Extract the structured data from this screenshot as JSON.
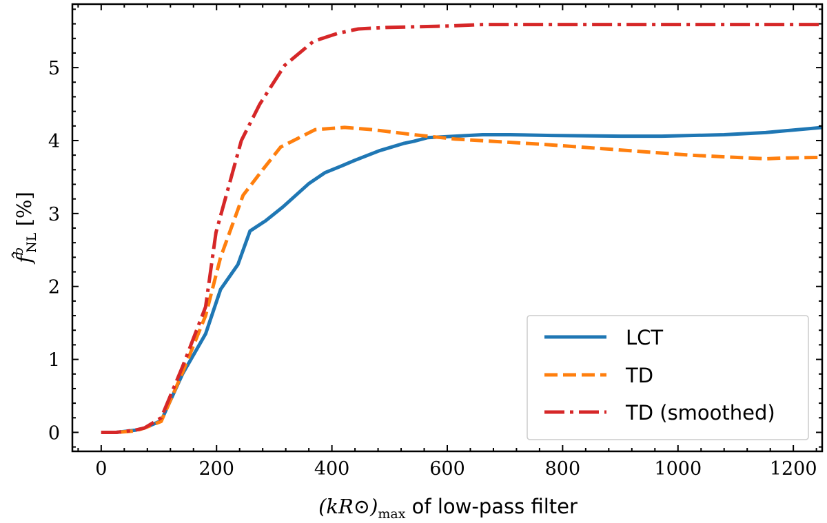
{
  "chart_data": {
    "type": "line",
    "title": "",
    "xlabel": "(kR⊙)max of low-pass filter",
    "xlabel_math": "(kR⊙)",
    "xlabel_sub": "max",
    "xlabel_text": " of low-pass filter",
    "ylabel": "f̂bNL [%]",
    "ylabel_f": "f̂",
    "ylabel_sup": "b",
    "ylabel_sub": "NL",
    "ylabel_unit": " [%]",
    "xlim": [
      -50,
      1250
    ],
    "ylim": [
      -0.26,
      5.87
    ],
    "xticks": [
      0,
      200,
      400,
      600,
      800,
      1000,
      1200
    ],
    "yticks": [
      0,
      1,
      2,
      3,
      4,
      5
    ],
    "grid": false,
    "legend_placement": "lower-right",
    "series": [
      {
        "name": "LCT",
        "color": "#1f77b4",
        "style": "solid",
        "x": [
          0,
          26,
          59,
          75,
          104,
          141,
          181,
          207,
          237,
          258,
          285,
          315,
          360,
          388,
          416,
          440,
          482,
          524,
          542,
          566,
          614,
          661,
          709,
          781,
          901,
          972,
          1080,
          1152,
          1251
        ],
        "y": [
          0,
          0,
          0.03,
          0.06,
          0.16,
          0.8,
          1.35,
          1.96,
          2.3,
          2.76,
          2.9,
          3.09,
          3.41,
          3.56,
          3.65,
          3.73,
          3.86,
          3.96,
          3.99,
          4.04,
          4.06,
          4.08,
          4.08,
          4.07,
          4.06,
          4.06,
          4.08,
          4.11,
          4.18
        ]
      },
      {
        "name": "TD",
        "color": "#ff7f0e",
        "style": "dashed",
        "x": [
          0,
          26,
          59,
          75,
          104,
          141,
          181,
          207,
          246,
          280,
          311,
          371,
          422,
          470,
          542,
          614,
          700,
          781,
          901,
          1020,
          1152,
          1180,
          1251
        ],
        "y": [
          0,
          0,
          0.02,
          0.06,
          0.15,
          0.82,
          1.6,
          2.4,
          3.25,
          3.6,
          3.91,
          4.15,
          4.18,
          4.15,
          4.08,
          4.02,
          3.98,
          3.94,
          3.87,
          3.8,
          3.75,
          3.76,
          3.77
        ]
      },
      {
        "name": "TD (smoothed)",
        "color": "#d62728",
        "style": "dashdot",
        "x": [
          0,
          26,
          59,
          75,
          104,
          141,
          181,
          199,
          243,
          275,
          318,
          368,
          410,
          446,
          494,
          602,
          661,
          1251
        ],
        "y": [
          0,
          0,
          0.03,
          0.06,
          0.2,
          0.9,
          1.72,
          2.74,
          4.0,
          4.5,
          5.03,
          5.36,
          5.47,
          5.53,
          5.55,
          5.57,
          5.59,
          5.59
        ]
      }
    ]
  }
}
